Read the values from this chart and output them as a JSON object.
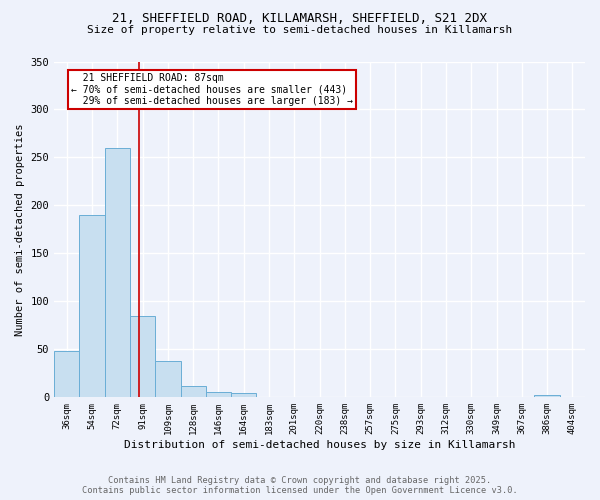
{
  "title1": "21, SHEFFIELD ROAD, KILLAMARSH, SHEFFIELD, S21 2DX",
  "title2": "Size of property relative to semi-detached houses in Killamarsh",
  "xlabel": "Distribution of semi-detached houses by size in Killamarsh",
  "ylabel": "Number of semi-detached properties",
  "categories": [
    "36sqm",
    "54sqm",
    "72sqm",
    "91sqm",
    "109sqm",
    "128sqm",
    "146sqm",
    "164sqm",
    "183sqm",
    "201sqm",
    "220sqm",
    "238sqm",
    "257sqm",
    "275sqm",
    "293sqm",
    "312sqm",
    "330sqm",
    "349sqm",
    "367sqm",
    "386sqm",
    "404sqm"
  ],
  "values": [
    48,
    190,
    260,
    85,
    38,
    12,
    6,
    4,
    0,
    0,
    0,
    0,
    0,
    0,
    0,
    0,
    0,
    0,
    0,
    2,
    0
  ],
  "bar_color": "#c8dff0",
  "bar_edge_color": "#6aaed6",
  "property_line_x": 2.85,
  "property_label": "21 SHEFFIELD ROAD: 87sqm",
  "pct_smaller": 70,
  "count_smaller": 443,
  "pct_larger": 29,
  "count_larger": 183,
  "annotation_box_color": "#ffffff",
  "annotation_box_edge": "#cc0000",
  "vline_color": "#cc0000",
  "background_color": "#eef2fb",
  "grid_color": "#ffffff",
  "ylim": [
    0,
    350
  ],
  "yticks": [
    0,
    50,
    100,
    150,
    200,
    250,
    300,
    350
  ],
  "title_fontsize": 9,
  "subtitle_fontsize": 8,
  "footer1": "Contains HM Land Registry data © Crown copyright and database right 2025.",
  "footer2": "Contains public sector information licensed under the Open Government Licence v3.0."
}
